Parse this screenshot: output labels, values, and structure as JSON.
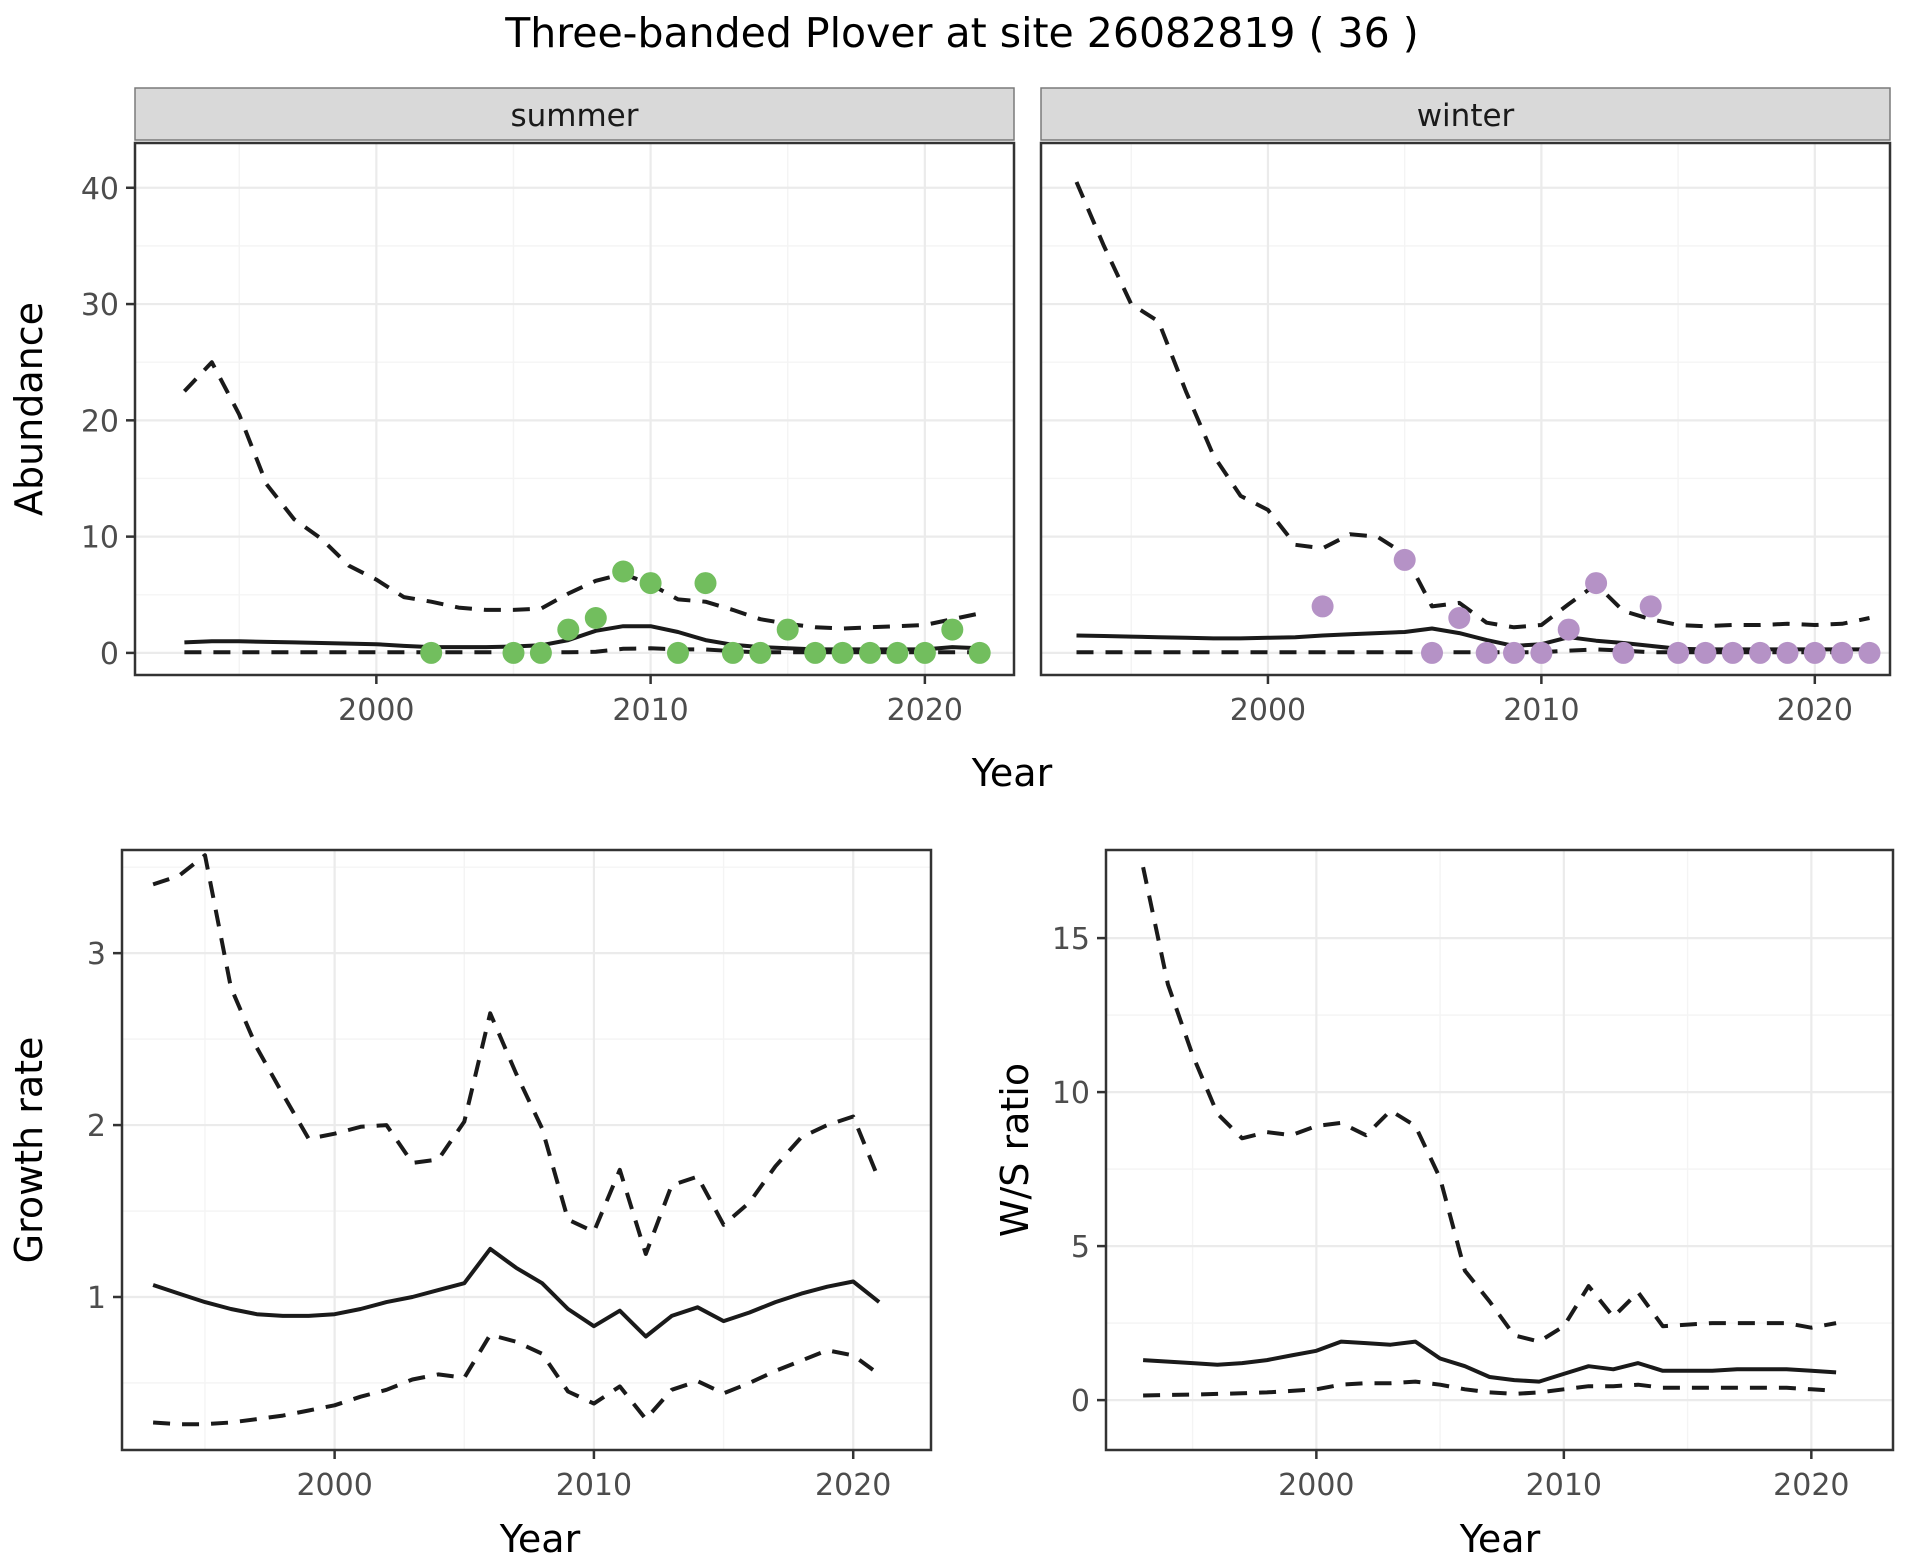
{
  "title": "Three-banded Plover at site 26082819 ( 36 )",
  "colors": {
    "summer_point": "#72BE5E",
    "winter_point": "#B592C6",
    "line": "#1a1a1a",
    "grid_major": "#EBEBEB",
    "grid_minor": "#F4F4F4",
    "panel_border": "#333333",
    "strip_fill": "#D9D9D9",
    "tick_mark": "#333333"
  },
  "chart_data": [
    {
      "id": "abundance-summer",
      "type": "line",
      "facet": "summer",
      "ylabel": "Abundance",
      "xlabel": "Year",
      "xlim": [
        1991.2,
        2023.25
      ],
      "ylim": [
        -1.9,
        43.85
      ],
      "xticks": [
        2000,
        2010,
        2020
      ],
      "xminor": [
        1995,
        2005,
        2015
      ],
      "yticks": [
        0,
        10,
        20,
        30,
        40
      ],
      "yminor": [
        5,
        15,
        25,
        35
      ],
      "legend": "none",
      "series": [
        {
          "name": "upper-credible-interval",
          "dash": true,
          "x": [
            1993,
            1994,
            1995,
            1996,
            1997,
            1998,
            1999,
            2000,
            2001,
            2002,
            2003,
            2004,
            2005,
            2006,
            2007,
            2008,
            2009,
            2010,
            2011,
            2012,
            2013,
            2014,
            2015,
            2016,
            2017,
            2018,
            2019,
            2020,
            2021,
            2022
          ],
          "y": [
            22.5,
            25,
            20.5,
            14.5,
            11.5,
            9.8,
            7.5,
            6.3,
            4.8,
            4.4,
            3.9,
            3.7,
            3.7,
            3.8,
            5.1,
            6.2,
            6.8,
            5.9,
            4.6,
            4.4,
            3.7,
            2.9,
            2.5,
            2.2,
            2.1,
            2.2,
            2.3,
            2.4,
            2.9,
            3.4
          ]
        },
        {
          "name": "median",
          "dash": false,
          "x": [
            1993,
            1994,
            1995,
            1996,
            1997,
            1998,
            1999,
            2000,
            2001,
            2002,
            2003,
            2004,
            2005,
            2006,
            2007,
            2008,
            2009,
            2010,
            2011,
            2012,
            2013,
            2014,
            2015,
            2016,
            2017,
            2018,
            2019,
            2020,
            2021,
            2022
          ],
          "y": [
            0.9,
            1.0,
            1.0,
            0.95,
            0.9,
            0.85,
            0.8,
            0.75,
            0.6,
            0.5,
            0.5,
            0.5,
            0.55,
            0.65,
            1.1,
            1.9,
            2.3,
            2.3,
            1.8,
            1.1,
            0.7,
            0.5,
            0.4,
            0.3,
            0.3,
            0.3,
            0.3,
            0.3,
            0.5,
            0.4
          ]
        },
        {
          "name": "lower-credible-interval",
          "dash": true,
          "x": [
            1993,
            1994,
            1995,
            1996,
            1997,
            1998,
            1999,
            2000,
            2001,
            2002,
            2003,
            2004,
            2005,
            2006,
            2007,
            2008,
            2009,
            2010,
            2011,
            2012,
            2013,
            2014,
            2015,
            2016,
            2017,
            2018,
            2019,
            2020,
            2021,
            2022
          ],
          "y": [
            0.05,
            0.05,
            0.05,
            0.05,
            0.05,
            0.05,
            0.05,
            0.05,
            0.05,
            0.05,
            0.05,
            0.05,
            0.05,
            0.05,
            0.05,
            0.1,
            0.35,
            0.4,
            0.3,
            0.3,
            0.15,
            0.05,
            0.05,
            0.05,
            0.05,
            0.05,
            0.05,
            0.05,
            0.05,
            0.05
          ]
        }
      ],
      "points": {
        "name": "observed-count",
        "color_key": "summer_point",
        "x": [
          2002,
          2005,
          2006,
          2007,
          2008,
          2009,
          2010,
          2011,
          2012,
          2013,
          2014,
          2015,
          2016,
          2017,
          2018,
          2019,
          2020,
          2021,
          2022
        ],
        "y": [
          0,
          0,
          0,
          2,
          3,
          7,
          6,
          0,
          6,
          0,
          0,
          2,
          0,
          0,
          0,
          0,
          0,
          2,
          0
        ]
      }
    },
    {
      "id": "abundance-winter",
      "type": "line",
      "facet": "winter",
      "xlim": [
        1991.7,
        2022.75
      ],
      "ylim": [
        -1.9,
        43.85
      ],
      "xticks": [
        2000,
        2010,
        2020
      ],
      "xminor": [
        1995,
        2005,
        2015
      ],
      "yticks": [
        0,
        10,
        20,
        30,
        40
      ],
      "yminor": [
        5,
        15,
        25,
        35
      ],
      "series": [
        {
          "name": "upper-credible-interval",
          "dash": true,
          "x": [
            1993,
            1994,
            1995,
            1996,
            1997,
            1998,
            1999,
            2000,
            2001,
            2002,
            2003,
            2004,
            2005,
            2006,
            2007,
            2008,
            2009,
            2010,
            2011,
            2012,
            2013,
            2014,
            2015,
            2016,
            2017,
            2018,
            2019,
            2020,
            2021,
            2022
          ],
          "y": [
            40.5,
            35,
            30,
            28.5,
            22.5,
            17,
            13.5,
            12.3,
            9.3,
            9.0,
            10.2,
            10.0,
            8.5,
            4.0,
            4.3,
            2.6,
            2.2,
            2.4,
            4.2,
            5.9,
            3.6,
            2.9,
            2.4,
            2.3,
            2.4,
            2.4,
            2.5,
            2.4,
            2.5,
            3.0
          ]
        },
        {
          "name": "median",
          "dash": false,
          "x": [
            1993,
            1994,
            1995,
            1996,
            1997,
            1998,
            1999,
            2000,
            2001,
            2002,
            2003,
            2004,
            2005,
            2006,
            2007,
            2008,
            2009,
            2010,
            2011,
            2012,
            2013,
            2014,
            2015,
            2016,
            2017,
            2018,
            2019,
            2020,
            2021,
            2022
          ],
          "y": [
            1.5,
            1.45,
            1.4,
            1.35,
            1.3,
            1.25,
            1.25,
            1.3,
            1.35,
            1.5,
            1.6,
            1.7,
            1.8,
            2.1,
            1.7,
            1.1,
            0.6,
            0.75,
            1.35,
            1.05,
            0.85,
            0.6,
            0.35,
            0.3,
            0.3,
            0.3,
            0.3,
            0.3,
            0.3,
            0.3
          ]
        },
        {
          "name": "lower-credible-interval",
          "dash": true,
          "x": [
            1993,
            1994,
            1995,
            1996,
            1997,
            1998,
            1999,
            2000,
            2001,
            2002,
            2003,
            2004,
            2005,
            2006,
            2007,
            2008,
            2009,
            2010,
            2011,
            2012,
            2013,
            2014,
            2015,
            2016,
            2017,
            2018,
            2019,
            2020,
            2021,
            2022
          ],
          "y": [
            0.05,
            0.05,
            0.05,
            0.05,
            0.05,
            0.05,
            0.05,
            0.05,
            0.05,
            0.05,
            0.05,
            0.05,
            0.05,
            0.05,
            0.05,
            0.05,
            0.05,
            0.05,
            0.2,
            0.3,
            0.2,
            0.05,
            0.05,
            0.05,
            0.05,
            0.05,
            0.05,
            0.05,
            0.05,
            0.05
          ]
        }
      ],
      "points": {
        "name": "observed-count",
        "color_key": "winter_point",
        "x": [
          2002,
          2005,
          2006,
          2007,
          2008,
          2009,
          2010,
          2011,
          2012,
          2013,
          2014,
          2015,
          2016,
          2017,
          2018,
          2019,
          2020,
          2021,
          2022
        ],
        "y": [
          4,
          8,
          0,
          3,
          0,
          0,
          0,
          2,
          6,
          0,
          4,
          0,
          0,
          0,
          0,
          0,
          0,
          0,
          0
        ]
      }
    },
    {
      "id": "growth-rate",
      "type": "line",
      "ylabel": "Growth rate",
      "xlabel": "Year",
      "xlim": [
        1991.8,
        2023.0
      ],
      "ylim": [
        0.11,
        3.6
      ],
      "xticks": [
        2000,
        2010,
        2020
      ],
      "xminor": [
        1995,
        2005,
        2015
      ],
      "yticks": [
        1,
        2,
        3
      ],
      "yminor": [
        0.5,
        1.5,
        2.5,
        3.5
      ],
      "series": [
        {
          "name": "upper-credible-interval",
          "dash": true,
          "x": [
            1993,
            1994,
            1995,
            1996,
            1997,
            1998,
            1999,
            2000,
            2001,
            2002,
            2003,
            2004,
            2005,
            2006,
            2007,
            2008,
            2009,
            2010,
            2011,
            2012,
            2013,
            2014,
            2015,
            2016,
            2017,
            2018,
            2019,
            2020,
            2021
          ],
          "y": [
            3.4,
            3.45,
            3.57,
            2.8,
            2.45,
            2.18,
            1.92,
            1.95,
            1.99,
            2.0,
            1.78,
            1.8,
            2.02,
            2.65,
            2.3,
            1.98,
            1.45,
            1.38,
            1.74,
            1.25,
            1.65,
            1.7,
            1.42,
            1.55,
            1.76,
            1.93,
            2.0,
            2.05,
            1.68
          ]
        },
        {
          "name": "median",
          "dash": false,
          "x": [
            1993,
            1994,
            1995,
            1996,
            1997,
            1998,
            1999,
            2000,
            2001,
            2002,
            2003,
            2004,
            2005,
            2006,
            2007,
            2008,
            2009,
            2010,
            2011,
            2012,
            2013,
            2014,
            2015,
            2016,
            2017,
            2018,
            2019,
            2020,
            2021
          ],
          "y": [
            1.07,
            1.02,
            0.97,
            0.93,
            0.9,
            0.89,
            0.89,
            0.9,
            0.93,
            0.97,
            1.0,
            1.04,
            1.08,
            1.28,
            1.17,
            1.08,
            0.93,
            0.83,
            0.92,
            0.77,
            0.89,
            0.94,
            0.86,
            0.91,
            0.97,
            1.02,
            1.06,
            1.09,
            0.97
          ]
        },
        {
          "name": "lower-credible-interval",
          "dash": true,
          "x": [
            1993,
            1994,
            1995,
            1996,
            1997,
            1998,
            1999,
            2000,
            2001,
            2002,
            2003,
            2004,
            2005,
            2006,
            2007,
            2008,
            2009,
            2010,
            2011,
            2012,
            2013,
            2014,
            2015,
            2016,
            2017,
            2018,
            2019,
            2020,
            2021
          ],
          "y": [
            0.27,
            0.26,
            0.26,
            0.27,
            0.29,
            0.31,
            0.34,
            0.37,
            0.42,
            0.46,
            0.52,
            0.55,
            0.53,
            0.78,
            0.74,
            0.67,
            0.45,
            0.38,
            0.48,
            0.29,
            0.46,
            0.51,
            0.44,
            0.5,
            0.57,
            0.63,
            0.69,
            0.66,
            0.55
          ]
        }
      ]
    },
    {
      "id": "ws-ratio",
      "type": "line",
      "ylabel": "W/S ratio",
      "xlabel": "Year",
      "xlim": [
        1991.5,
        2023.3
      ],
      "ylim": [
        -1.62,
        17.86
      ],
      "xticks": [
        2000,
        2010,
        2020
      ],
      "xminor": [
        1995,
        2005,
        2015
      ],
      "yticks": [
        0,
        5,
        10,
        15
      ],
      "yminor": [
        2.5,
        7.5,
        12.5
      ],
      "series": [
        {
          "name": "upper-credible-interval",
          "dash": true,
          "x": [
            1993,
            1994,
            1995,
            1996,
            1997,
            1998,
            1999,
            2000,
            2001,
            2002,
            2003,
            2004,
            2005,
            2006,
            2007,
            2008,
            2009,
            2010,
            2011,
            2012,
            2013,
            2014,
            2015,
            2016,
            2017,
            2018,
            2019,
            2020,
            2021
          ],
          "y": [
            17.3,
            13.5,
            11.2,
            9.3,
            8.5,
            8.7,
            8.6,
            8.9,
            9.0,
            8.6,
            9.4,
            8.9,
            7.2,
            4.2,
            3.2,
            2.1,
            1.9,
            2.4,
            3.7,
            2.7,
            3.5,
            2.4,
            2.45,
            2.5,
            2.5,
            2.5,
            2.5,
            2.35,
            2.5
          ]
        },
        {
          "name": "median",
          "dash": false,
          "x": [
            1993,
            1994,
            1995,
            1996,
            1997,
            1998,
            1999,
            2000,
            2001,
            2002,
            2003,
            2004,
            2005,
            2006,
            2007,
            2008,
            2009,
            2010,
            2011,
            2012,
            2013,
            2014,
            2015,
            2016,
            2017,
            2018,
            2019,
            2020,
            2021
          ],
          "y": [
            1.3,
            1.25,
            1.2,
            1.15,
            1.2,
            1.3,
            1.45,
            1.6,
            1.9,
            1.85,
            1.8,
            1.9,
            1.35,
            1.1,
            0.75,
            0.65,
            0.6,
            0.85,
            1.1,
            1.0,
            1.2,
            0.95,
            0.95,
            0.95,
            1.0,
            1.0,
            1.0,
            0.95,
            0.9
          ]
        },
        {
          "name": "lower-credible-interval",
          "dash": true,
          "x": [
            1993,
            1994,
            1995,
            1996,
            1997,
            1998,
            1999,
            2000,
            2001,
            2002,
            2003,
            2004,
            2005,
            2006,
            2007,
            2008,
            2009,
            2010,
            2011,
            2012,
            2013,
            2014,
            2015,
            2016,
            2017,
            2018,
            2019,
            2020,
            2021
          ],
          "y": [
            0.15,
            0.17,
            0.18,
            0.2,
            0.22,
            0.25,
            0.3,
            0.35,
            0.5,
            0.55,
            0.55,
            0.6,
            0.5,
            0.35,
            0.25,
            0.2,
            0.25,
            0.35,
            0.45,
            0.45,
            0.5,
            0.4,
            0.4,
            0.4,
            0.4,
            0.4,
            0.4,
            0.35,
            0.3
          ]
        }
      ]
    }
  ]
}
